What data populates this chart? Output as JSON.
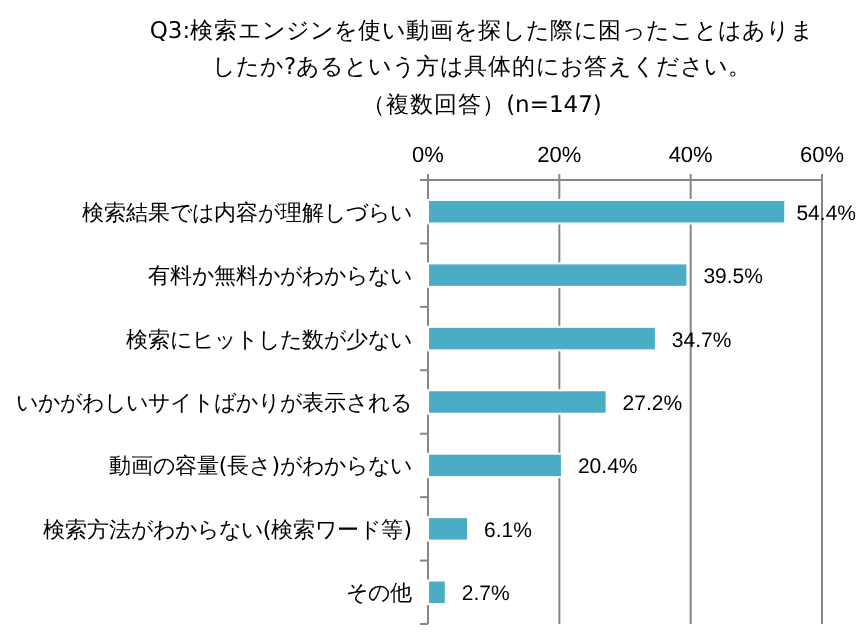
{
  "chart_data": {
    "type": "bar",
    "orientation": "horizontal",
    "title": "Q3:検索エンジンを使い動画を探した際に困ったことはありましたか?あるという方は具体的にお答えください。",
    "subtitle": "（複数回答）(n=147)",
    "categories": [
      "検索結果では内容が理解しづらい",
      "有料か無料かがわからない",
      "検索にヒットした数が少ない",
      "いかがわしいサイトばかりが表示される",
      "動画の容量(長さ)がわからない",
      "検索方法がわからない(検索ワード等)",
      "その他"
    ],
    "values": [
      54.4,
      39.5,
      34.7,
      27.2,
      20.4,
      6.1,
      2.7
    ],
    "value_labels": [
      "54.4%",
      "39.5%",
      "34.7%",
      "27.2%",
      "20.4%",
      "6.1%",
      "2.7%"
    ],
    "color": "#4bacc6",
    "xlim": [
      0,
      60
    ],
    "xticks": [
      {
        "value": 0,
        "label": "0%"
      },
      {
        "value": 20,
        "label": "20%"
      },
      {
        "value": 40,
        "label": "40%"
      },
      {
        "value": 60,
        "label": "60%"
      }
    ],
    "grid": "x"
  }
}
